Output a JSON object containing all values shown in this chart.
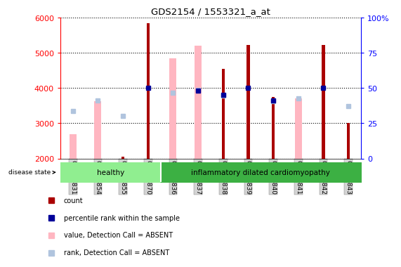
{
  "title": "GDS2154 / 1553321_a_at",
  "samples": [
    "GSM94831",
    "GSM94854",
    "GSM94855",
    "GSM94870",
    "GSM94836",
    "GSM94837",
    "GSM94838",
    "GSM94839",
    "GSM94840",
    "GSM94841",
    "GSM94842",
    "GSM94843"
  ],
  "count_values": [
    null,
    null,
    2050,
    5850,
    null,
    null,
    4550,
    5220,
    3750,
    null,
    5220,
    3000
  ],
  "percentile_values": [
    null,
    null,
    null,
    4000,
    null,
    3920,
    3800,
    4000,
    3650,
    null,
    4000,
    null
  ],
  "absent_value_values": [
    2700,
    3620,
    null,
    null,
    4850,
    5200,
    null,
    null,
    null,
    3700,
    null,
    null
  ],
  "absent_rank_values": [
    3350,
    3650,
    3200,
    null,
    3870,
    3940,
    3790,
    null,
    3620,
    3700,
    null,
    3480
  ],
  "ylim": [
    2000,
    6000
  ],
  "yticks_left": [
    2000,
    3000,
    4000,
    5000,
    6000
  ],
  "yticks_right": [
    0,
    25,
    50,
    75,
    100
  ],
  "bar_color_count": "#AA0000",
  "bar_color_percentile": "#000099",
  "bar_color_absent_value": "#FFB6C1",
  "bar_color_absent_rank": "#b0c4de",
  "healthy_color": "#90ee90",
  "inflammatory_color": "#3cb043",
  "background_color": "#ffffff",
  "legend_items": [
    "count",
    "percentile rank within the sample",
    "value, Detection Call = ABSENT",
    "rank, Detection Call = ABSENT"
  ]
}
